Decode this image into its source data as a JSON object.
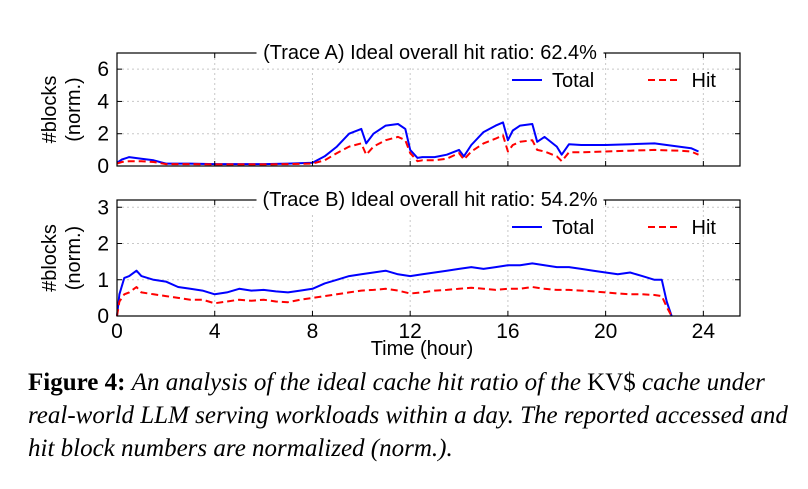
{
  "figure": {
    "xlabel": "Time (hour)",
    "x_ticks": [
      "0",
      "4",
      "8",
      "12",
      "16",
      "20",
      "24"
    ]
  },
  "caption": {
    "label": "Figure 4:",
    "text_1": "An analysis of the ideal cache hit ratio of the",
    "kv": "KV$",
    "text_2": "cache under real-world LLM serving workloads within a day. The reported accessed and hit block numbers are normalized (norm.)."
  },
  "colors": {
    "total": "#0000ff",
    "hit": "#ff0000",
    "grid": "#c8c8c8"
  },
  "chart_data": [
    {
      "type": "line",
      "title": "(Trace A) Ideal overall hit ratio: 62.4%",
      "ylabel": "#blocks (norm.)",
      "xlim": [
        0,
        25.5
      ],
      "ylim": [
        0,
        7
      ],
      "x_ticks": [
        0,
        4,
        8,
        12,
        16,
        20,
        24
      ],
      "y_ticks": [
        0,
        2,
        4,
        6
      ],
      "grid": true,
      "legend_position": "top-right",
      "x": [
        0,
        0.2,
        0.5,
        1,
        1.5,
        2,
        2.5,
        3,
        4,
        5,
        6,
        7,
        8,
        8.5,
        9,
        9.5,
        10,
        10.2,
        10.5,
        11,
        11.5,
        11.8,
        12,
        12.3,
        12.5,
        13,
        13.5,
        14,
        14.2,
        14.5,
        15,
        15.5,
        15.8,
        16,
        16.2,
        16.5,
        17,
        17.2,
        17.5,
        18,
        18.2,
        18.5,
        19,
        20,
        21,
        22,
        23,
        23.5,
        23.8
      ],
      "series": [
        {
          "name": "Total",
          "values": [
            0.2,
            0.4,
            0.55,
            0.45,
            0.35,
            0.15,
            0.15,
            0.15,
            0.12,
            0.12,
            0.12,
            0.15,
            0.2,
            0.6,
            1.2,
            2.0,
            2.3,
            1.4,
            2.0,
            2.5,
            2.6,
            2.3,
            1.0,
            0.5,
            0.55,
            0.55,
            0.7,
            1.0,
            0.6,
            1.3,
            2.1,
            2.5,
            2.7,
            1.6,
            2.2,
            2.5,
            2.6,
            1.5,
            1.8,
            1.2,
            0.7,
            1.35,
            1.3,
            1.3,
            1.35,
            1.4,
            1.2,
            1.1,
            0.9
          ]
        },
        {
          "name": "Hit",
          "values": [
            0.15,
            0.25,
            0.3,
            0.3,
            0.25,
            0.12,
            0.12,
            0.12,
            0.1,
            0.1,
            0.1,
            0.12,
            0.15,
            0.35,
            0.8,
            1.2,
            1.4,
            0.7,
            1.2,
            1.6,
            1.8,
            1.6,
            0.8,
            0.3,
            0.35,
            0.35,
            0.45,
            0.8,
            0.4,
            0.9,
            1.4,
            1.7,
            1.9,
            0.9,
            1.3,
            1.5,
            1.6,
            1.0,
            0.9,
            0.6,
            0.3,
            0.85,
            0.85,
            0.9,
            0.95,
            1.0,
            0.95,
            0.9,
            0.7
          ]
        }
      ]
    },
    {
      "type": "line",
      "title": "(Trace B) Ideal overall hit ratio: 54.2%",
      "ylabel": "#blocks (norm.)",
      "xlim": [
        0,
        25.5
      ],
      "ylim": [
        0,
        3.2
      ],
      "x_ticks": [
        0,
        4,
        8,
        12,
        16,
        20,
        24
      ],
      "y_ticks": [
        0,
        1,
        2,
        3
      ],
      "grid": true,
      "legend_position": "top-right",
      "x": [
        0,
        0.1,
        0.3,
        0.5,
        0.8,
        1,
        1.5,
        2,
        2.5,
        3,
        3.5,
        4,
        4.5,
        5,
        5.5,
        6,
        6.5,
        7,
        7.5,
        8,
        8.5,
        9,
        9.5,
        10,
        10.5,
        11,
        11.5,
        12,
        12.5,
        13,
        13.5,
        14,
        14.5,
        15,
        15.5,
        16,
        16.5,
        17,
        17.5,
        18,
        18.5,
        19,
        19.5,
        20,
        20.5,
        21,
        21.5,
        22,
        22.3,
        22.5,
        22.7
      ],
      "series": [
        {
          "name": "Total",
          "values": [
            0,
            0.6,
            1.05,
            1.1,
            1.25,
            1.1,
            1.0,
            0.95,
            0.8,
            0.75,
            0.7,
            0.6,
            0.65,
            0.75,
            0.7,
            0.72,
            0.68,
            0.65,
            0.7,
            0.75,
            0.9,
            1.0,
            1.1,
            1.15,
            1.2,
            1.25,
            1.15,
            1.1,
            1.15,
            1.2,
            1.25,
            1.3,
            1.35,
            1.3,
            1.35,
            1.4,
            1.4,
            1.45,
            1.4,
            1.35,
            1.35,
            1.3,
            1.25,
            1.2,
            1.15,
            1.2,
            1.1,
            1.0,
            1.0,
            0.4,
            0
          ]
        },
        {
          "name": "Hit",
          "values": [
            0,
            0.4,
            0.6,
            0.65,
            0.8,
            0.65,
            0.6,
            0.55,
            0.5,
            0.45,
            0.45,
            0.35,
            0.4,
            0.45,
            0.42,
            0.45,
            0.4,
            0.38,
            0.45,
            0.5,
            0.55,
            0.6,
            0.65,
            0.7,
            0.72,
            0.75,
            0.7,
            0.62,
            0.65,
            0.7,
            0.72,
            0.75,
            0.78,
            0.75,
            0.72,
            0.75,
            0.75,
            0.8,
            0.75,
            0.72,
            0.72,
            0.7,
            0.68,
            0.65,
            0.62,
            0.6,
            0.6,
            0.58,
            0.55,
            0.25,
            0
          ]
        }
      ]
    }
  ]
}
